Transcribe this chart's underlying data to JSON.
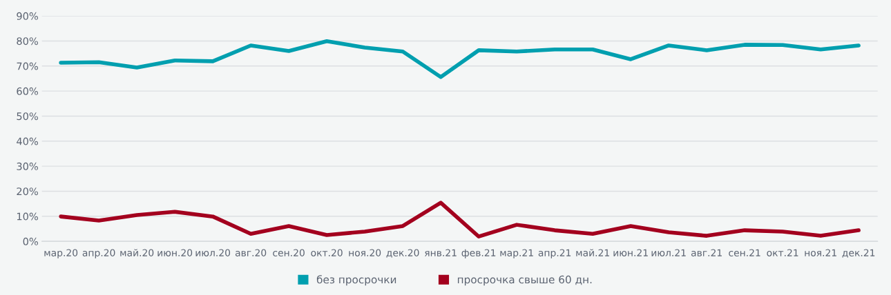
{
  "chart_data": {
    "type": "line",
    "categories": [
      "мар.20",
      "апр.20",
      "май.20",
      "июн.20",
      "июл.20",
      "авг.20",
      "сен.20",
      "окт.20",
      "ноя.20",
      "дек.20",
      "янв.21",
      "фев.21",
      "мар.21",
      "апр.21",
      "май.21",
      "июн.21",
      "июл.21",
      "авг.21",
      "сен.21",
      "окт.21",
      "ноя.21",
      "дек.21"
    ],
    "series": [
      {
        "name": "без просрочки",
        "color": "#009faf",
        "values": [
          71.3,
          71.5,
          69.4,
          72.2,
          71.9,
          78.2,
          76.0,
          79.9,
          77.4,
          75.8,
          65.6,
          76.3,
          75.8,
          76.6,
          76.6,
          72.7,
          78.2,
          76.3,
          78.5,
          78.4,
          76.6,
          78.2
        ]
      },
      {
        "name": "просрочка свыше 60 дн.",
        "color": "#a3001e",
        "values": [
          9.9,
          8.3,
          10.5,
          11.8,
          9.9,
          3.0,
          6.1,
          2.5,
          3.9,
          6.1,
          15.4,
          1.9,
          6.6,
          4.4,
          3.0,
          6.1,
          3.6,
          2.2,
          4.4,
          3.9,
          2.2,
          4.4
        ]
      }
    ],
    "ylim": [
      0,
      90
    ],
    "yticks": [
      {
        "value": 0,
        "label": "0%"
      },
      {
        "value": 10,
        "label": "10%"
      },
      {
        "value": 20,
        "label": "20%"
      },
      {
        "value": 30,
        "label": "30%"
      },
      {
        "value": 40,
        "label": "40%"
      },
      {
        "value": 50,
        "label": "50%"
      },
      {
        "value": 60,
        "label": "60%"
      },
      {
        "value": 70,
        "label": "70%"
      },
      {
        "value": 80,
        "label": "80%"
      },
      {
        "value": 90,
        "label": "90%"
      }
    ],
    "grid": "y",
    "legend": "bottom",
    "marker": "none",
    "line_style": "solid"
  }
}
